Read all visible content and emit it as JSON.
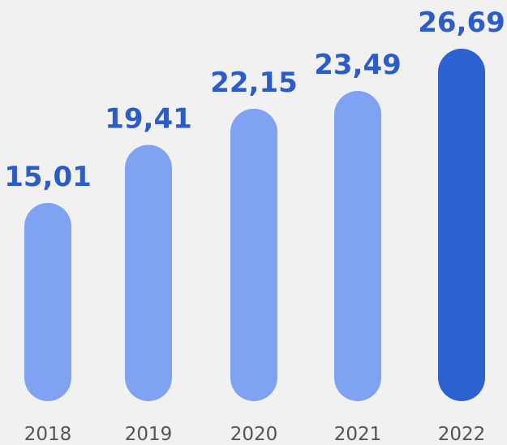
{
  "chart_data": {
    "type": "bar",
    "categories": [
      "2018",
      "2019",
      "2020",
      "2021",
      "2022"
    ],
    "values": [
      15.01,
      19.41,
      22.15,
      23.49,
      26.69
    ],
    "value_labels": [
      "15,01",
      "19,41",
      "22,15",
      "23,49",
      "26,69"
    ],
    "highlighted_category": "2022",
    "title": "",
    "xlabel": "",
    "ylabel": "",
    "ylim": [
      0,
      26.69
    ],
    "grid": false,
    "legend": "none"
  },
  "colors": {
    "background": "#f1f1f1",
    "bar": "#7fa3f2",
    "bar_highlight": "#2b61d1",
    "value_label": "#2b5cc9",
    "tick_label": "#555555"
  }
}
